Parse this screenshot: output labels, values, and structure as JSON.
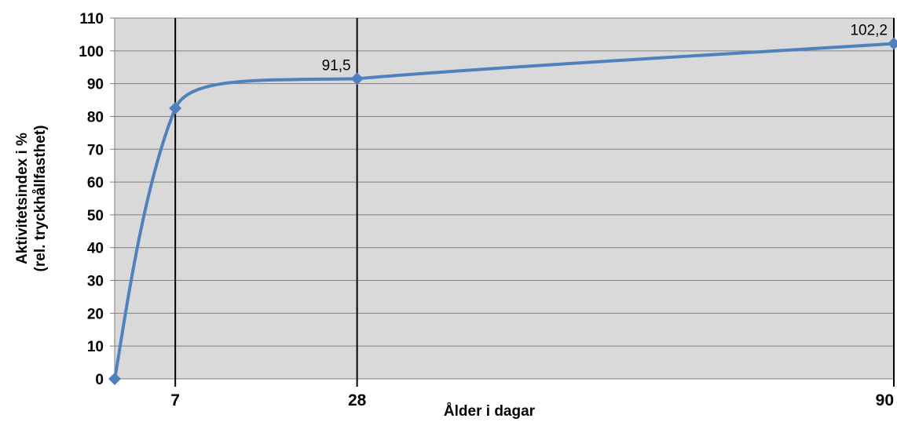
{
  "chart_data": {
    "type": "line",
    "xlabel": "Ålder i dagar",
    "ylabel_lines": [
      "Aktivitetsindex i %",
      "(rel. tryckhållfasthet)"
    ],
    "ylim": [
      0,
      110
    ],
    "yticks": [
      0,
      10,
      20,
      30,
      40,
      50,
      60,
      70,
      80,
      90,
      100,
      110
    ],
    "xticks": [
      7,
      28,
      90
    ],
    "xlim": [
      0,
      90
    ],
    "grid": true,
    "background": "#d9d9d9",
    "line_color": "#4f81bd",
    "series": [
      {
        "points": [
          {
            "x": 0,
            "y": 0
          },
          {
            "x": 7,
            "y": 82.5
          },
          {
            "x": 28,
            "y": 91.5
          },
          {
            "x": 90,
            "y": 102.2
          }
        ],
        "data_labels": [
          {
            "x": 28,
            "text": "91,5"
          },
          {
            "x": 90,
            "text": "102,2"
          }
        ]
      }
    ]
  }
}
